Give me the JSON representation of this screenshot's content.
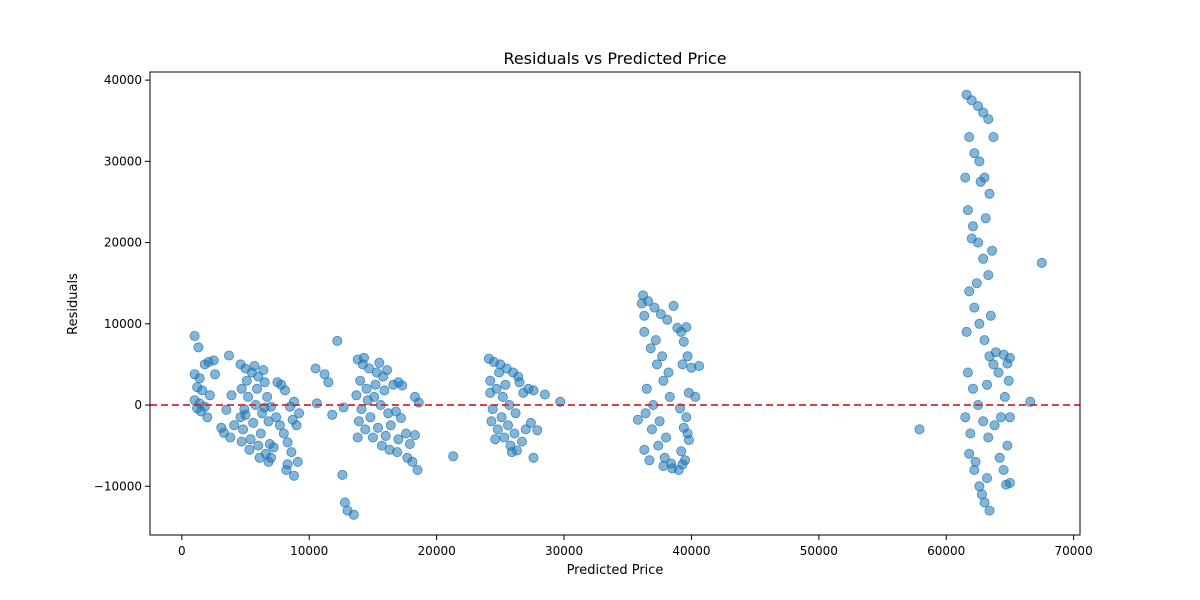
{
  "chart_data": {
    "type": "scatter",
    "title": "Residuals vs Predicted Price",
    "xlabel": "Predicted Price",
    "ylabel": "Residuals",
    "xlim": [
      -2500,
      70500
    ],
    "ylim": [
      -16000,
      41000
    ],
    "xticks": [
      {
        "value": 0,
        "label": "0"
      },
      {
        "value": 10000,
        "label": "10000"
      },
      {
        "value": 20000,
        "label": "20000"
      },
      {
        "value": 30000,
        "label": "30000"
      },
      {
        "value": 40000,
        "label": "40000"
      },
      {
        "value": 50000,
        "label": "50000"
      },
      {
        "value": 60000,
        "label": "60000"
      },
      {
        "value": 70000,
        "label": "70000"
      }
    ],
    "yticks": [
      {
        "value": -10000,
        "label": "−10000"
      },
      {
        "value": 0,
        "label": "0"
      },
      {
        "value": 10000,
        "label": "10000"
      },
      {
        "value": 20000,
        "label": "20000"
      },
      {
        "value": 30000,
        "label": "30000"
      },
      {
        "value": 40000,
        "label": "40000"
      }
    ],
    "reference_line": {
      "y": 0,
      "color": "#d62728",
      "style": "dashed"
    },
    "point_color": "#1f77b4",
    "point_alpha": 0.55,
    "grid": false,
    "points": [
      [
        1000,
        8500
      ],
      [
        1300,
        7100
      ],
      [
        1000,
        3800
      ],
      [
        1400,
        3300
      ],
      [
        1800,
        5000
      ],
      [
        2100,
        5300
      ],
      [
        2500,
        5500
      ],
      [
        1200,
        2200
      ],
      [
        1600,
        1800
      ],
      [
        2200,
        1200
      ],
      [
        1000,
        600
      ],
      [
        1400,
        200
      ],
      [
        1800,
        -200
      ],
      [
        1500,
        -800
      ],
      [
        2000,
        -1500
      ],
      [
        1200,
        -400
      ],
      [
        2600,
        3800
      ],
      [
        3100,
        -2800
      ],
      [
        3300,
        -3400
      ],
      [
        3700,
        6100
      ],
      [
        3500,
        -600
      ],
      [
        3900,
        1200
      ],
      [
        4100,
        -2500
      ],
      [
        3800,
        -4000
      ],
      [
        4600,
        5000
      ],
      [
        5000,
        4500
      ],
      [
        5500,
        4000
      ],
      [
        6000,
        3500
      ],
      [
        6500,
        2800
      ],
      [
        4700,
        2000
      ],
      [
        5200,
        1000
      ],
      [
        5800,
        0
      ],
      [
        6300,
        -1000
      ],
      [
        6800,
        -2000
      ],
      [
        4800,
        -3000
      ],
      [
        5400,
        -4200
      ],
      [
        6000,
        -5000
      ],
      [
        6600,
        -6000
      ],
      [
        7000,
        -6500
      ],
      [
        4900,
        -500
      ],
      [
        5600,
        -2200
      ],
      [
        6200,
        -3500
      ],
      [
        6900,
        -4800
      ],
      [
        5100,
        3000
      ],
      [
        5900,
        2000
      ],
      [
        6700,
        1000
      ],
      [
        7000,
        -200
      ],
      [
        4700,
        -4500
      ],
      [
        5300,
        -5500
      ],
      [
        6100,
        -6500
      ],
      [
        6800,
        -7000
      ],
      [
        5700,
        4800
      ],
      [
        6400,
        4300
      ],
      [
        4600,
        -1500
      ],
      [
        7200,
        -5200
      ],
      [
        5000,
        -1200
      ],
      [
        6500,
        -300
      ],
      [
        7500,
        2800
      ],
      [
        7800,
        2500
      ],
      [
        8100,
        1800
      ],
      [
        7400,
        -1500
      ],
      [
        7700,
        -2500
      ],
      [
        8000,
        -3500
      ],
      [
        8300,
        -4600
      ],
      [
        8600,
        -5800
      ],
      [
        8300,
        -7300
      ],
      [
        8800,
        -8700
      ],
      [
        9100,
        -7000
      ],
      [
        9200,
        -1000
      ],
      [
        8800,
        400
      ],
      [
        8500,
        -200
      ],
      [
        9000,
        -2500
      ],
      [
        8200,
        -8000
      ],
      [
        8700,
        -1800
      ],
      [
        10500,
        4500
      ],
      [
        11200,
        3800
      ],
      [
        11500,
        2800
      ],
      [
        11800,
        -1200
      ],
      [
        12200,
        7900
      ],
      [
        12600,
        -8600
      ],
      [
        12800,
        -12000
      ],
      [
        13000,
        -13000
      ],
      [
        13500,
        -13500
      ],
      [
        12700,
        -300
      ],
      [
        10600,
        200
      ],
      [
        13800,
        5600
      ],
      [
        14200,
        5000
      ],
      [
        14700,
        4500
      ],
      [
        15300,
        4000
      ],
      [
        15800,
        3500
      ],
      [
        14000,
        3000
      ],
      [
        14500,
        2000
      ],
      [
        15100,
        1000
      ],
      [
        15600,
        0
      ],
      [
        16200,
        -1000
      ],
      [
        13900,
        -2000
      ],
      [
        14400,
        -3000
      ],
      [
        15000,
        -4000
      ],
      [
        15700,
        -5000
      ],
      [
        16300,
        -5500
      ],
      [
        14100,
        -500
      ],
      [
        14800,
        -1500
      ],
      [
        15400,
        -2800
      ],
      [
        16000,
        -3800
      ],
      [
        13700,
        1200
      ],
      [
        14600,
        600
      ],
      [
        15200,
        2500
      ],
      [
        15900,
        1800
      ],
      [
        16400,
        -2500
      ],
      [
        13800,
        -4000
      ],
      [
        14300,
        5800
      ],
      [
        15500,
        5200
      ],
      [
        16100,
        4300
      ],
      [
        16600,
        2500
      ],
      [
        17000,
        2800
      ],
      [
        17300,
        2400
      ],
      [
        16800,
        -800
      ],
      [
        17200,
        -1600
      ],
      [
        17600,
        -3500
      ],
      [
        17900,
        -4800
      ],
      [
        17700,
        -6500
      ],
      [
        18100,
        -7000
      ],
      [
        18500,
        -8000
      ],
      [
        18300,
        -3700
      ],
      [
        18600,
        300
      ],
      [
        18300,
        1000
      ],
      [
        17000,
        -4200
      ],
      [
        16900,
        -5800
      ],
      [
        21300,
        -6300
      ],
      [
        24100,
        5700
      ],
      [
        24500,
        5300
      ],
      [
        25000,
        5000
      ],
      [
        25500,
        4500
      ],
      [
        26000,
        4000
      ],
      [
        26400,
        3500
      ],
      [
        24200,
        3000
      ],
      [
        24700,
        2000
      ],
      [
        25200,
        1000
      ],
      [
        25700,
        0
      ],
      [
        26200,
        -1000
      ],
      [
        24300,
        -2000
      ],
      [
        24800,
        -3000
      ],
      [
        25300,
        -4000
      ],
      [
        25800,
        -5000
      ],
      [
        26300,
        -5600
      ],
      [
        24400,
        -500
      ],
      [
        25100,
        -1500
      ],
      [
        25600,
        -2500
      ],
      [
        26100,
        -3500
      ],
      [
        24200,
        1500
      ],
      [
        24900,
        4000
      ],
      [
        25400,
        2500
      ],
      [
        26500,
        2800
      ],
      [
        24600,
        -4200
      ],
      [
        25900,
        -5800
      ],
      [
        26800,
        1500
      ],
      [
        27200,
        2000
      ],
      [
        27600,
        1800
      ],
      [
        27000,
        -3000
      ],
      [
        27400,
        -2200
      ],
      [
        27600,
        -6500
      ],
      [
        27900,
        -3100
      ],
      [
        28500,
        1300
      ],
      [
        29700,
        400
      ],
      [
        26700,
        -4500
      ],
      [
        35800,
        -1800
      ],
      [
        36200,
        13500
      ],
      [
        36600,
        12800
      ],
      [
        37100,
        12000
      ],
      [
        37600,
        11200
      ],
      [
        38100,
        10500
      ],
      [
        36300,
        9000
      ],
      [
        36800,
        7000
      ],
      [
        37300,
        5000
      ],
      [
        37800,
        3000
      ],
      [
        38300,
        1000
      ],
      [
        36400,
        -1000
      ],
      [
        36900,
        -3000
      ],
      [
        37400,
        -5000
      ],
      [
        37900,
        -6500
      ],
      [
        38400,
        -7200
      ],
      [
        36300,
        11000
      ],
      [
        37200,
        8000
      ],
      [
        37700,
        6000
      ],
      [
        38200,
        4000
      ],
      [
        36500,
        2000
      ],
      [
        37000,
        0
      ],
      [
        37500,
        -2000
      ],
      [
        38000,
        -4000
      ],
      [
        36300,
        -5500
      ],
      [
        36700,
        -6800
      ],
      [
        37800,
        -7500
      ],
      [
        38500,
        -7800
      ],
      [
        36100,
        12500
      ],
      [
        38600,
        12200
      ],
      [
        38900,
        9500
      ],
      [
        39200,
        9000
      ],
      [
        39600,
        9600
      ],
      [
        39400,
        7800
      ],
      [
        39700,
        6000
      ],
      [
        39300,
        5000
      ],
      [
        40000,
        4600
      ],
      [
        40600,
        4800
      ],
      [
        39800,
        1500
      ],
      [
        40300,
        1000
      ],
      [
        39100,
        -400
      ],
      [
        39600,
        -1500
      ],
      [
        39400,
        -2800
      ],
      [
        39700,
        -3500
      ],
      [
        39800,
        -4300
      ],
      [
        39200,
        -5700
      ],
      [
        39500,
        -6800
      ],
      [
        39000,
        -8000
      ],
      [
        39300,
        -7300
      ],
      [
        57900,
        -3000
      ],
      [
        61600,
        38200
      ],
      [
        62000,
        37500
      ],
      [
        62500,
        36800
      ],
      [
        62900,
        36000
      ],
      [
        63300,
        35200
      ],
      [
        61800,
        33000
      ],
      [
        62200,
        31000
      ],
      [
        62600,
        30000
      ],
      [
        63000,
        28000
      ],
      [
        63400,
        26000
      ],
      [
        61700,
        24000
      ],
      [
        62100,
        22000
      ],
      [
        62500,
        20000
      ],
      [
        62900,
        18000
      ],
      [
        63300,
        16000
      ],
      [
        61800,
        14000
      ],
      [
        62200,
        12000
      ],
      [
        62600,
        10000
      ],
      [
        63000,
        8000
      ],
      [
        63400,
        6000
      ],
      [
        61700,
        4000
      ],
      [
        62100,
        2000
      ],
      [
        62500,
        0
      ],
      [
        62900,
        -2000
      ],
      [
        63300,
        -4000
      ],
      [
        61800,
        -6000
      ],
      [
        62200,
        -8000
      ],
      [
        62600,
        -10000
      ],
      [
        63000,
        -12000
      ],
      [
        63400,
        -13000
      ],
      [
        62800,
        -11000
      ],
      [
        61900,
        -3500
      ],
      [
        63200,
        2500
      ],
      [
        62300,
        -7000
      ],
      [
        63500,
        11000
      ],
      [
        61600,
        9000
      ],
      [
        62700,
        27500
      ],
      [
        63100,
        23000
      ],
      [
        62400,
        15000
      ],
      [
        63600,
        19000
      ],
      [
        61500,
        28000
      ],
      [
        63700,
        33000
      ],
      [
        62000,
        20500
      ],
      [
        63200,
        -9000
      ],
      [
        61500,
        -1500
      ],
      [
        63700,
        5000
      ],
      [
        63900,
        6500
      ],
      [
        64100,
        4000
      ],
      [
        64500,
        6200
      ],
      [
        64800,
        5100
      ],
      [
        64600,
        1000
      ],
      [
        64900,
        3000
      ],
      [
        64300,
        -1500
      ],
      [
        64800,
        -5000
      ],
      [
        64500,
        -8000
      ],
      [
        64700,
        -9800
      ],
      [
        65000,
        -9600
      ],
      [
        65000,
        5800
      ],
      [
        65000,
        -1500
      ],
      [
        66600,
        400
      ],
      [
        67500,
        17500
      ],
      [
        63800,
        -2500
      ],
      [
        64200,
        -6500
      ]
    ]
  }
}
